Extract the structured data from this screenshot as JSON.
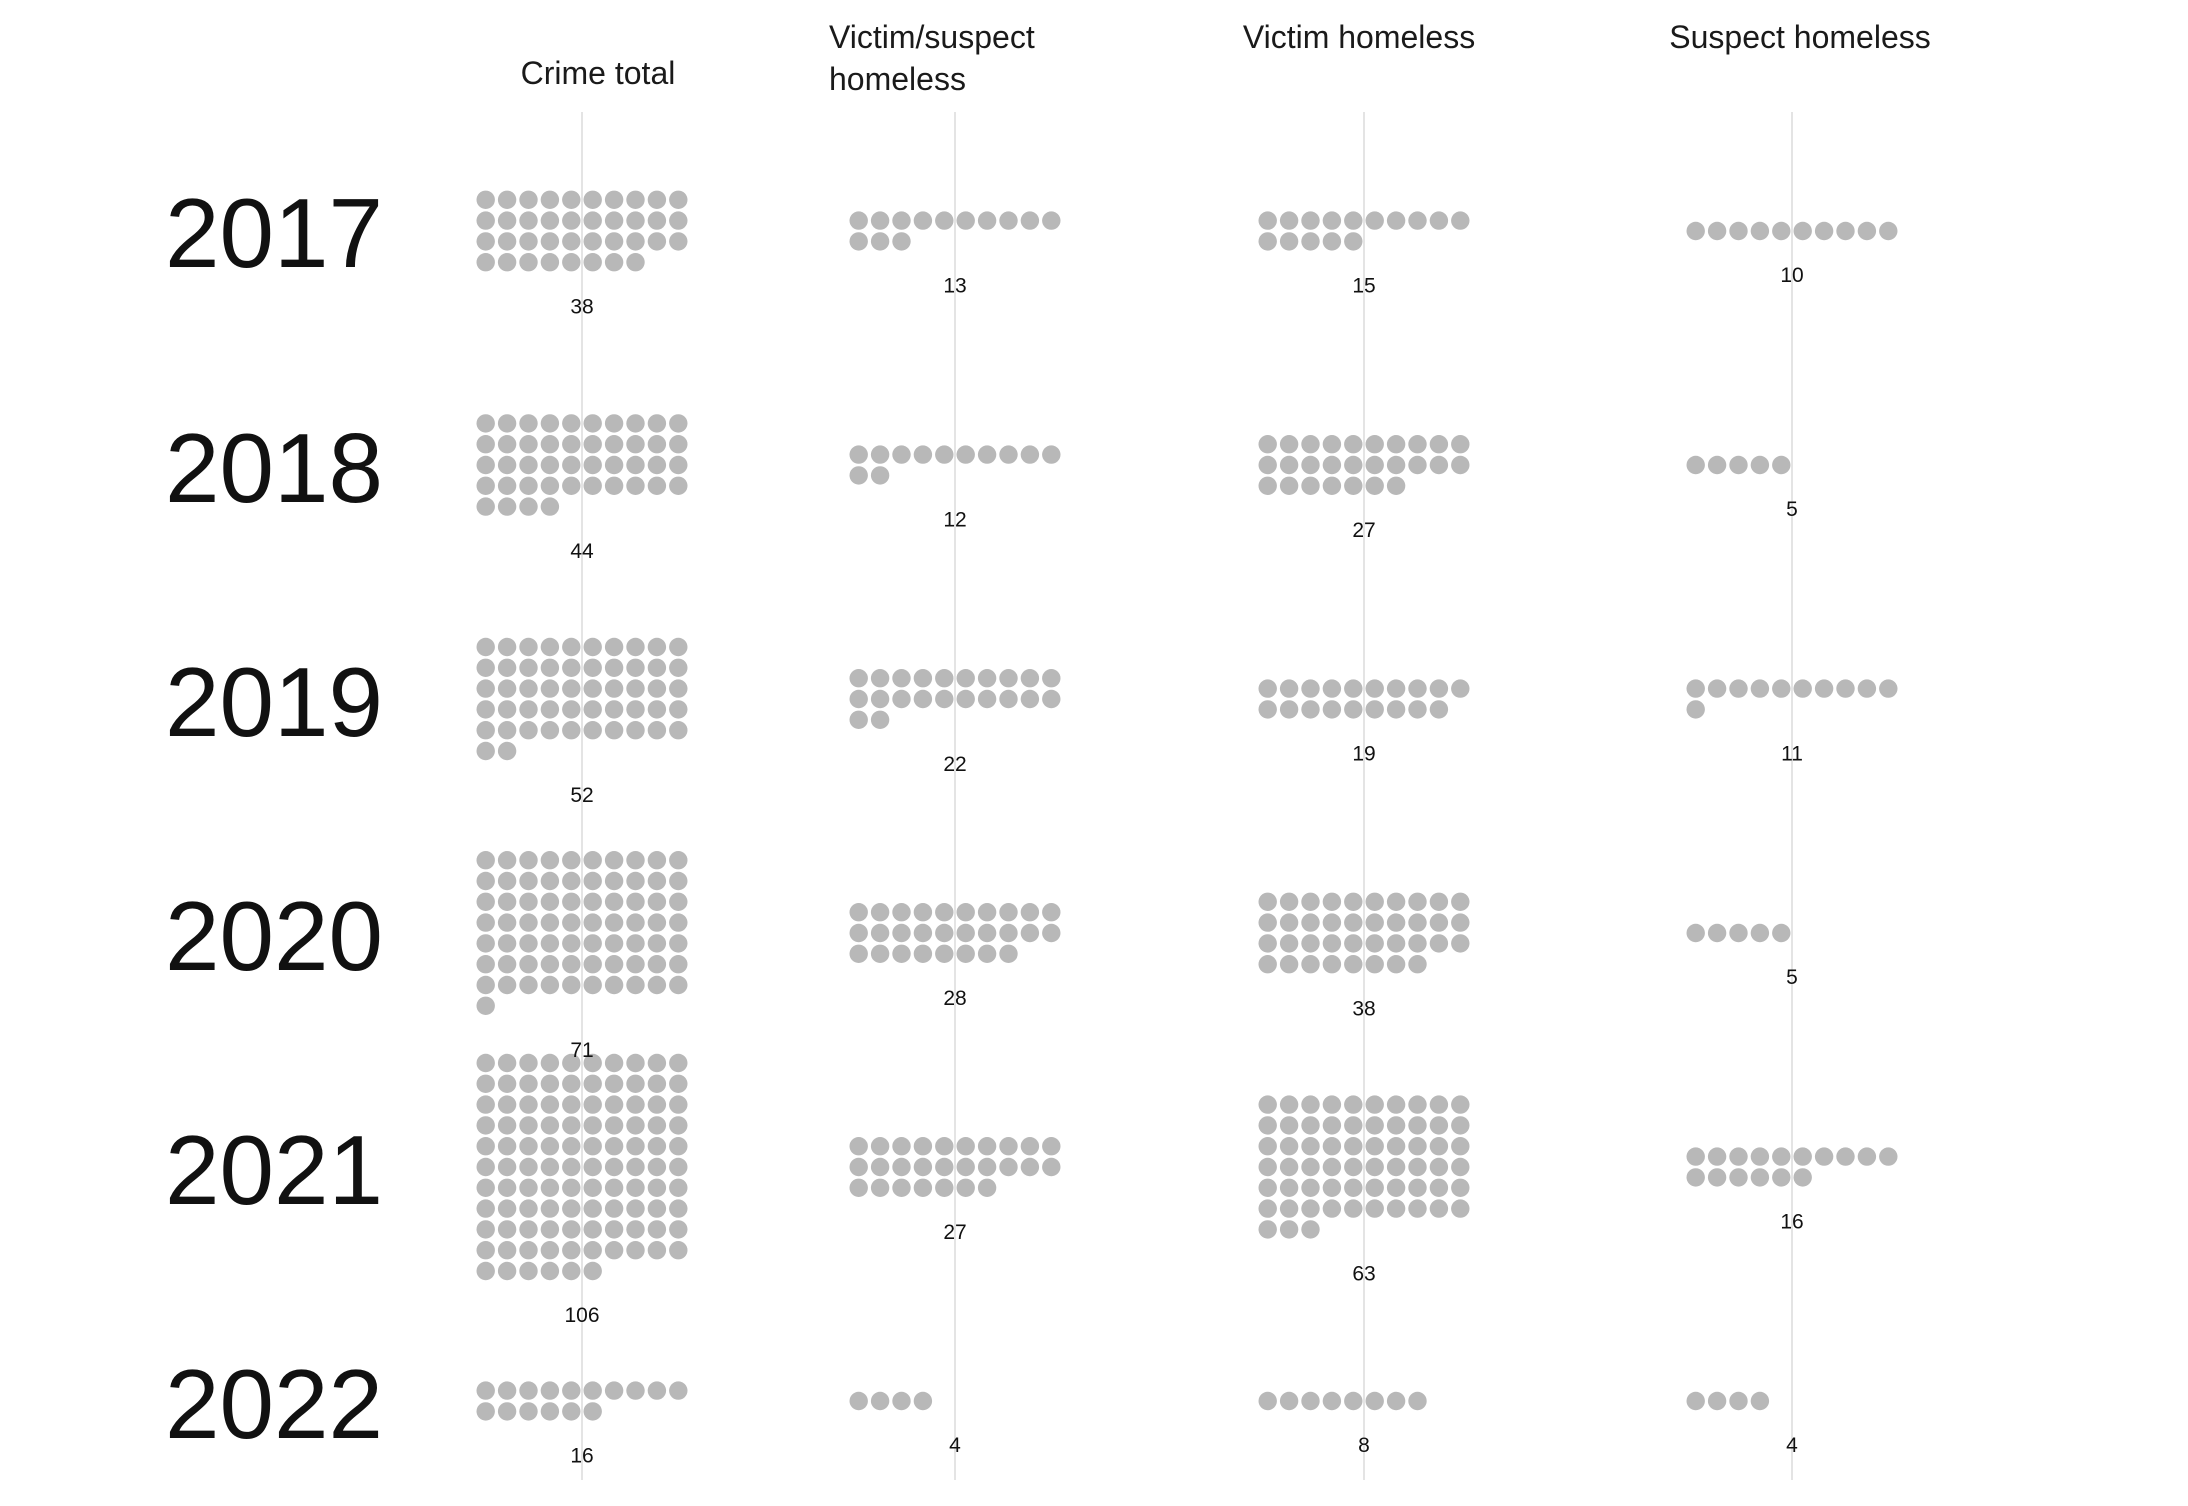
{
  "colors": {
    "dot": "#b8b8b8",
    "axis_line": "#e4e4e4",
    "text": "#111111",
    "background": "#ffffff"
  },
  "chart_data": {
    "type": "unit-dot-matrix",
    "columns": [
      {
        "key": "crime_total",
        "title_lines": [
          "Crime total"
        ]
      },
      {
        "key": "victim_suspect_homeless",
        "title_lines": [
          "Victim/suspect",
          "homeless"
        ]
      },
      {
        "key": "victim_homeless",
        "title_lines": [
          "Victim homeless"
        ]
      },
      {
        "key": "suspect_homeless",
        "title_lines": [
          "Suspect homeless"
        ]
      }
    ],
    "rows": [
      {
        "year": "2017",
        "values": [
          38,
          13,
          15,
          10
        ]
      },
      {
        "year": "2018",
        "values": [
          44,
          12,
          27,
          5
        ]
      },
      {
        "year": "2019",
        "values": [
          52,
          22,
          19,
          11
        ]
      },
      {
        "year": "2020",
        "values": [
          71,
          28,
          38,
          5
        ]
      },
      {
        "year": "2021",
        "values": [
          106,
          27,
          63,
          16
        ]
      },
      {
        "year": "2022",
        "values": [
          16,
          4,
          8,
          4
        ]
      }
    ],
    "dots_per_row": 10,
    "unit": "1 dot = 1 crime"
  }
}
